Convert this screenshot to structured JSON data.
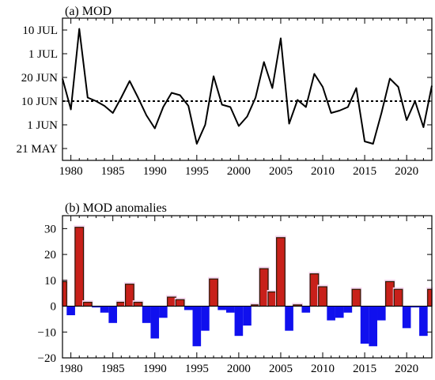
{
  "chart_data": [
    {
      "type": "line",
      "title": "(a) MOD",
      "xlabel": "",
      "ylabel": "",
      "xlim": [
        1979,
        2023
      ],
      "x_ticks": [
        1980,
        1985,
        1990,
        1995,
        2000,
        2005,
        2010,
        2015,
        2020
      ],
      "y_tick_labels": [
        {
          "label": "10 JUL",
          "value": 40
        },
        {
          "label": "1 JUL",
          "value": 30
        },
        {
          "label": "20 JUN",
          "value": 20
        },
        {
          "label": "10 JUN",
          "value": 10
        },
        {
          "label": "1 JUN",
          "value": 0
        },
        {
          "label": "21 MAY",
          "value": -10
        }
      ],
      "ylim": [
        -15,
        45
      ],
      "reference_line": {
        "value": 10,
        "style": "dotted"
      },
      "grid": false,
      "series": [
        {
          "x": [
            1979,
            1980,
            1981,
            1982,
            1983,
            1984,
            1985,
            1986,
            1987,
            1988,
            1989,
            1990,
            1991,
            1992,
            1993,
            1994,
            1995,
            1996,
            1997,
            1998,
            1999,
            2000,
            2001,
            2002,
            2003,
            2004,
            2005,
            2006,
            2007,
            2008,
            2009,
            2010,
            2011,
            2012,
            2013,
            2014,
            2015,
            2016,
            2017,
            2018,
            2019,
            2020,
            2021,
            2022,
            2023
          ],
          "values": [
            19.5,
            6.5,
            40.5,
            11.5,
            10,
            8,
            5,
            11.5,
            18.5,
            11.5,
            4,
            -1.5,
            7.5,
            13.5,
            12.5,
            8,
            -8,
            0,
            20.5,
            8.5,
            7.5,
            -0.5,
            3.5,
            11.5,
            26.5,
            15.5,
            36.5,
            0.5,
            10.5,
            7.5,
            21.5,
            16,
            5,
            6,
            7.5,
            15.5,
            -7,
            -8,
            5,
            19.5,
            16,
            2,
            10,
            -1,
            16.5
          ]
        }
      ]
    },
    {
      "type": "bar",
      "title": "(b) MOD anomalies",
      "xlabel": "",
      "ylabel": "",
      "xlim": [
        1979,
        2023
      ],
      "x_ticks": [
        1980,
        1985,
        1990,
        1995,
        2000,
        2005,
        2010,
        2015,
        2020
      ],
      "y_ticks": [
        30,
        20,
        10,
        0,
        -10,
        -20
      ],
      "ylim": [
        -20,
        35
      ],
      "grid": false,
      "colors": {
        "positive": "#c8201a",
        "negative": "#1010ee"
      },
      "x": [
        1979,
        1980,
        1981,
        1982,
        1983,
        1984,
        1985,
        1986,
        1987,
        1988,
        1989,
        1990,
        1991,
        1992,
        1993,
        1994,
        1995,
        1996,
        1997,
        1998,
        1999,
        2000,
        2001,
        2002,
        2003,
        2004,
        2005,
        2006,
        2007,
        2008,
        2009,
        2010,
        2011,
        2012,
        2013,
        2014,
        2015,
        2016,
        2017,
        2018,
        2019,
        2020,
        2021,
        2022,
        2023
      ],
      "values": [
        9.5,
        -3.5,
        30.5,
        1.5,
        -0.5,
        -2.5,
        -6.5,
        1.5,
        8.5,
        1.5,
        -6.5,
        -12.5,
        -4.5,
        3.5,
        2.5,
        -1.5,
        -15.5,
        -9.5,
        10.5,
        -1.5,
        -2.5,
        -11.5,
        -7.5,
        0.5,
        14.5,
        5.5,
        26.5,
        -9.5,
        0.5,
        -2.5,
        12.5,
        7.5,
        -5.5,
        -4.5,
        -2.5,
        6.5,
        -14.5,
        -15.5,
        -5.5,
        9.5,
        6.5,
        -8.5,
        -0.5,
        -11.5,
        6.5
      ]
    }
  ]
}
